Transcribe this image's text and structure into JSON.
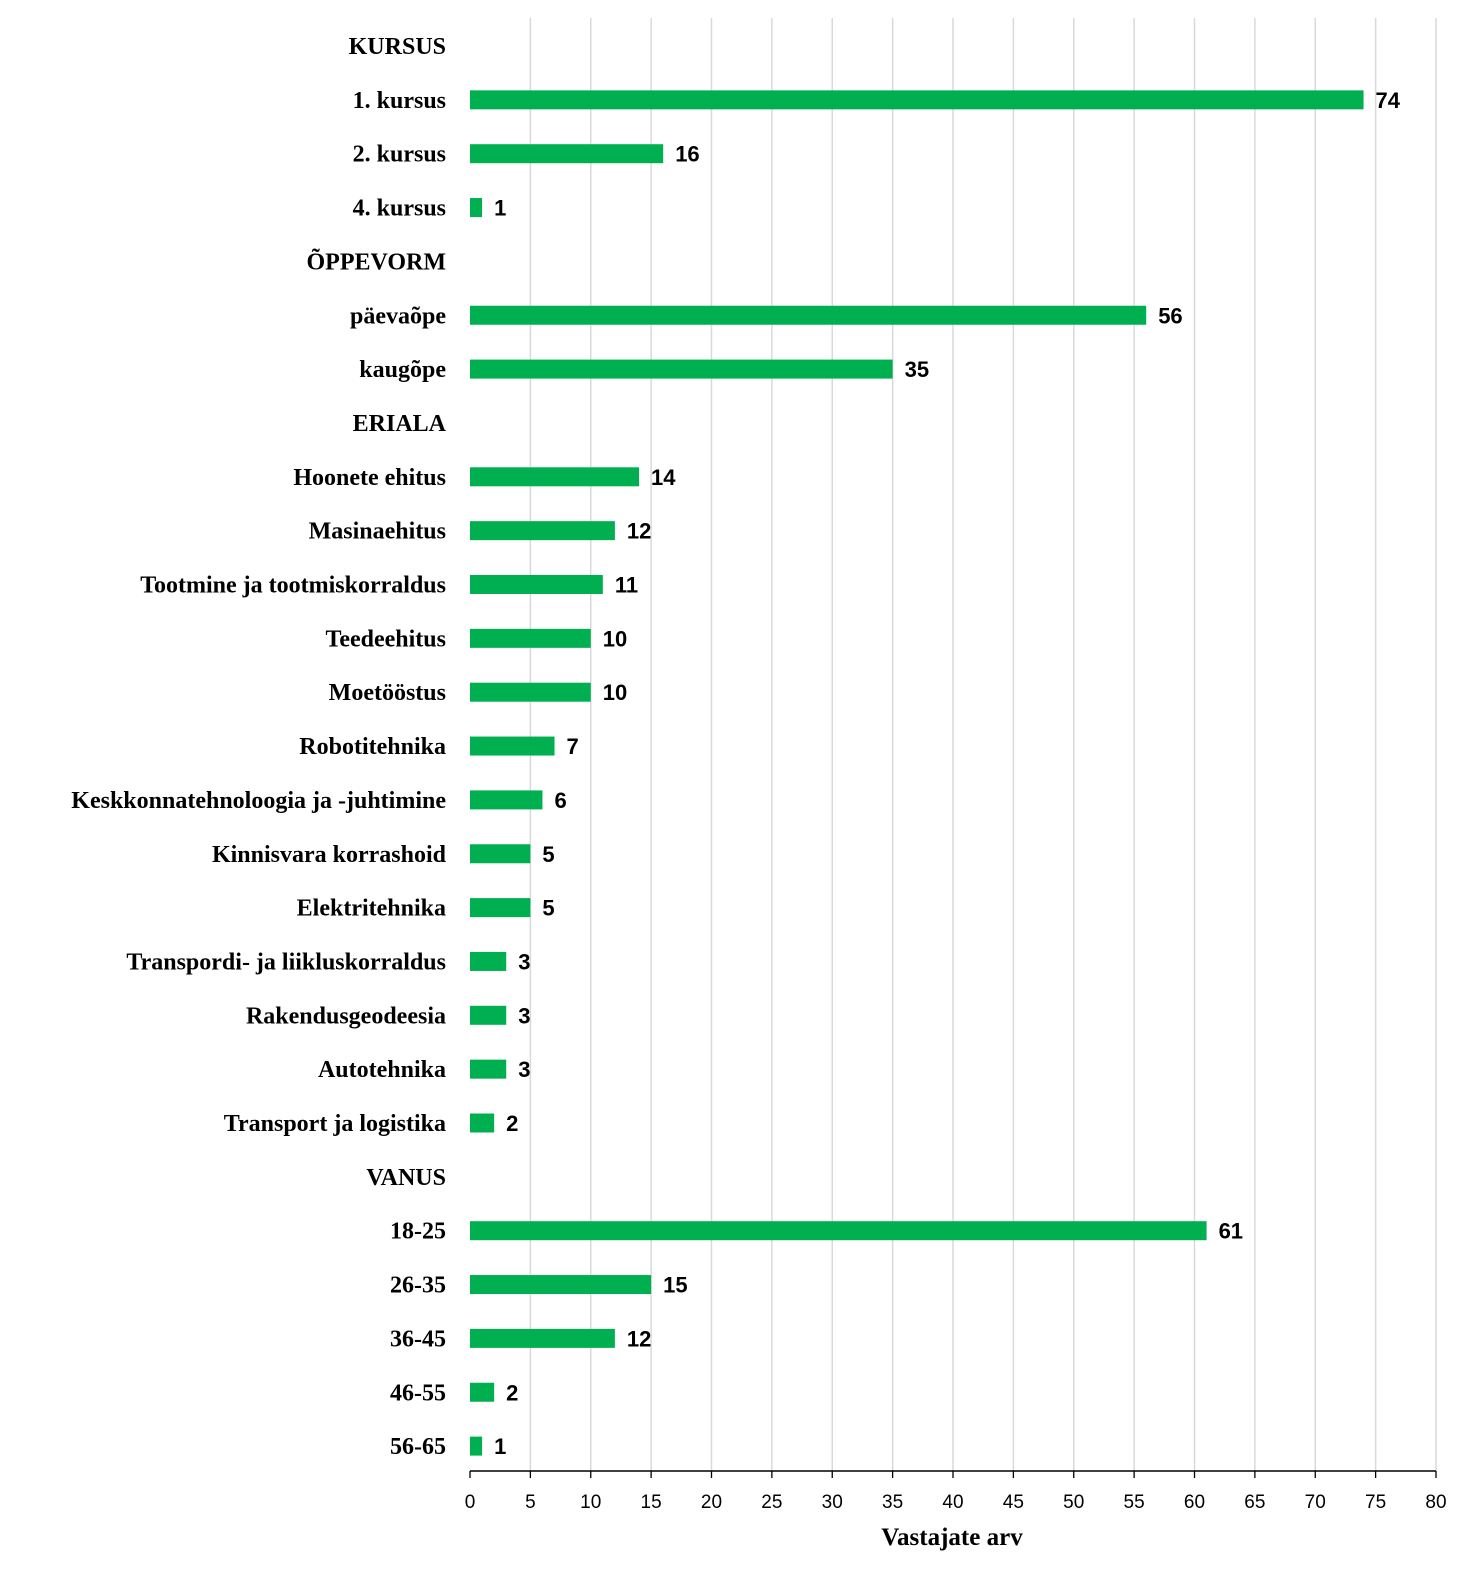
{
  "chart_data": {
    "type": "bar",
    "orientation": "horizontal",
    "bar_color": "#00b050",
    "xlabel": "Vastajate arv",
    "xlim": [
      0,
      80
    ],
    "x_tick_step": 5,
    "grid": true,
    "rows": [
      {
        "label": "KURSUS",
        "header": true
      },
      {
        "label": "1. kursus",
        "value": 74
      },
      {
        "label": "2. kursus",
        "value": 16
      },
      {
        "label": "4. kursus",
        "value": 1
      },
      {
        "label": "ÕPPEVORM",
        "header": true
      },
      {
        "label": "päevaõpe",
        "value": 56
      },
      {
        "label": "kaugõpe",
        "value": 35
      },
      {
        "label": "ERIALA",
        "header": true
      },
      {
        "label": "Hoonete ehitus",
        "value": 14
      },
      {
        "label": "Masinaehitus",
        "value": 12
      },
      {
        "label": "Tootmine ja tootmiskorraldus",
        "value": 11
      },
      {
        "label": "Teedeehitus",
        "value": 10
      },
      {
        "label": "Moetööstus",
        "value": 10
      },
      {
        "label": "Robotitehnika",
        "value": 7
      },
      {
        "label": "Keskkonnatehnoloogia ja -juhtimine",
        "value": 6
      },
      {
        "label": "Kinnisvara korrashoid",
        "value": 5
      },
      {
        "label": "Elektritehnika",
        "value": 5
      },
      {
        "label": "Transpordi- ja liikluskorraldus",
        "value": 3
      },
      {
        "label": "Rakendusgeodeesia",
        "value": 3
      },
      {
        "label": "Autotehnika",
        "value": 3
      },
      {
        "label": "Transport ja logistika",
        "value": 2
      },
      {
        "label": "VANUS",
        "header": true
      },
      {
        "label": "18-25",
        "value": 61
      },
      {
        "label": "26-35",
        "value": 15
      },
      {
        "label": "36-45",
        "value": 12
      },
      {
        "label": "46-55",
        "value": 2
      },
      {
        "label": "56-65",
        "value": 1
      }
    ]
  }
}
